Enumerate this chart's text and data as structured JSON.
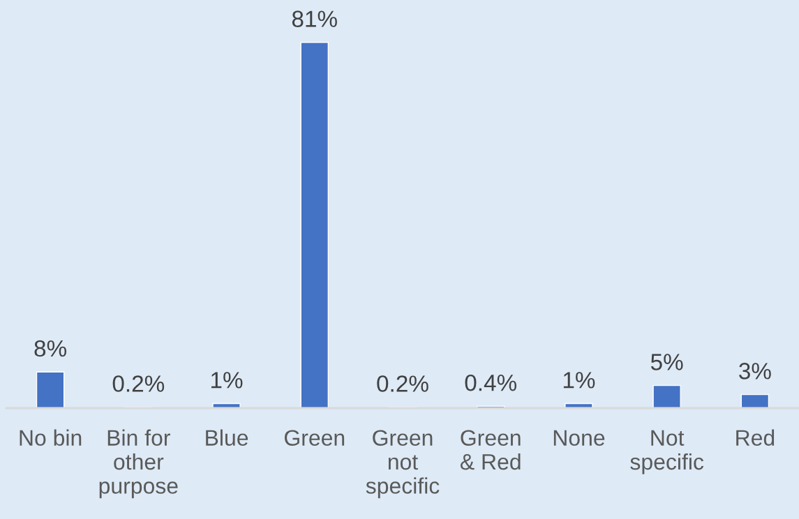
{
  "chart_data": {
    "type": "bar",
    "categories": [
      "No bin",
      "Bin for other purpose",
      "Blue",
      "Green",
      "Green not specific",
      "Green & Red",
      "None",
      "Not specific",
      "Red"
    ],
    "values": [
      8,
      0.2,
      1,
      81,
      0.2,
      0.4,
      1,
      5,
      3
    ],
    "value_labels": [
      "8%",
      "0.2%",
      "1%",
      "81%",
      "0.2%",
      "0.4%",
      "1%",
      "5%",
      "3%"
    ],
    "color": "#4472c4",
    "tick_labels": "x",
    "grid": false,
    "legend": false
  }
}
